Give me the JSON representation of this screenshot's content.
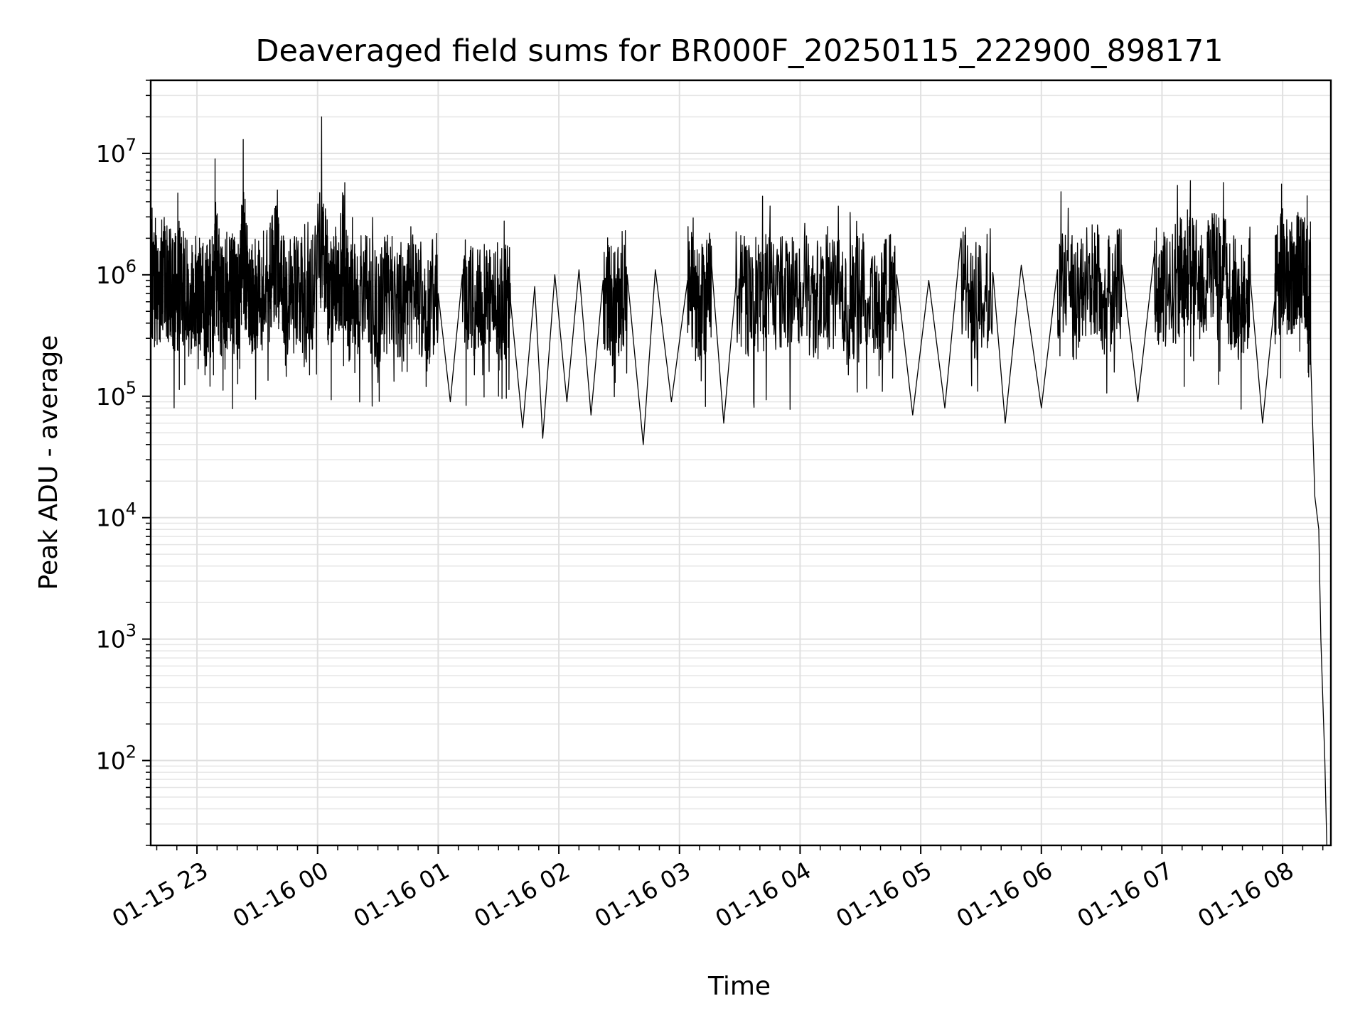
{
  "chart_data": {
    "type": "line",
    "title": "Deaveraged field sums for BR000F_20250115_222900_898171",
    "xlabel": "Time",
    "ylabel": "Peak ADU - average",
    "yscale": "log",
    "ylim": [
      20,
      40000000
    ],
    "xlim": [
      "2025-01-15 22:37",
      "2025-01-16 08:24"
    ],
    "grid": true,
    "line_color": "#000000",
    "x_ticks": [
      {
        "t": "2025-01-15 23:00",
        "label": "01-15 23"
      },
      {
        "t": "2025-01-16 00:00",
        "label": "01-16 00"
      },
      {
        "t": "2025-01-16 01:00",
        "label": "01-16 01"
      },
      {
        "t": "2025-01-16 02:00",
        "label": "01-16 02"
      },
      {
        "t": "2025-01-16 03:00",
        "label": "01-16 03"
      },
      {
        "t": "2025-01-16 04:00",
        "label": "01-16 04"
      },
      {
        "t": "2025-01-16 05:00",
        "label": "01-16 05"
      },
      {
        "t": "2025-01-16 06:00",
        "label": "01-16 06"
      },
      {
        "t": "2025-01-16 07:00",
        "label": "01-16 07"
      },
      {
        "t": "2025-01-16 08:00",
        "label": "01-16 08"
      }
    ],
    "y_ticks": [
      {
        "v": 100,
        "base": "10",
        "exp": "2"
      },
      {
        "v": 1000,
        "base": "10",
        "exp": "3"
      },
      {
        "v": 10000,
        "base": "10",
        "exp": "4"
      },
      {
        "v": 100000,
        "base": "10",
        "exp": "5"
      },
      {
        "v": 1000000,
        "base": "10",
        "exp": "6"
      },
      {
        "v": 10000000,
        "base": "10",
        "exp": "7"
      }
    ],
    "series": [
      {
        "points": [
          [
            "2025-01-15 22:37",
            1500000
          ],
          [
            "2025-01-15 22:40",
            600000
          ],
          [
            "2025-01-15 22:44",
            2500000
          ],
          [
            "2025-01-15 22:48",
            400000
          ],
          [
            "2025-01-15 22:52",
            1800000
          ],
          [
            "2025-01-15 22:56",
            250000
          ],
          [
            "2025-01-15 23:00",
            800000
          ],
          [
            "2025-01-15 23:04",
            150000
          ],
          [
            "2025-01-15 23:08",
            500000
          ],
          [
            "2025-01-15 23:09",
            9000000
          ],
          [
            "2025-01-15 23:12",
            300000
          ],
          [
            "2025-01-15 23:16",
            900000
          ],
          [
            "2025-01-15 23:20",
            200000
          ],
          [
            "2025-01-15 23:23",
            13000000
          ],
          [
            "2025-01-15 23:26",
            600000
          ],
          [
            "2025-01-15 23:30",
            250000
          ],
          [
            "2025-01-15 23:36",
            1200000
          ],
          [
            "2025-01-15 23:40",
            5000000
          ],
          [
            "2025-01-15 23:44",
            180000
          ],
          [
            "2025-01-15 23:50",
            700000
          ],
          [
            "2025-01-15 23:56",
            150000
          ],
          [
            "2025-01-16 00:02",
            20000000
          ],
          [
            "2025-01-16 00:06",
            400000
          ],
          [
            "2025-01-16 00:10",
            1400000
          ],
          [
            "2025-01-16 00:13",
            4500000
          ],
          [
            "2025-01-16 00:16",
            200000
          ],
          [
            "2025-01-16 00:22",
            800000
          ],
          [
            "2025-01-16 00:30",
            130000
          ],
          [
            "2025-01-16 00:36",
            1100000
          ],
          [
            "2025-01-16 00:42",
            160000
          ],
          [
            "2025-01-16 00:48",
            900000
          ],
          [
            "2025-01-16 00:54",
            120000
          ],
          [
            "2025-01-16 01:00",
            700000
          ],
          [
            "2025-01-16 01:06",
            90000
          ],
          [
            "2025-01-16 01:12",
            1000000
          ],
          [
            "2025-01-16 01:18",
            150000
          ],
          [
            "2025-01-16 01:24",
            900000
          ],
          [
            "2025-01-16 01:30",
            100000
          ],
          [
            "2025-01-16 01:36",
            600000
          ],
          [
            "2025-01-16 01:42",
            55000
          ],
          [
            "2025-01-16 01:48",
            800000
          ],
          [
            "2025-01-16 01:52",
            45000
          ],
          [
            "2025-01-16 01:58",
            1000000
          ],
          [
            "2025-01-16 02:04",
            90000
          ],
          [
            "2025-01-16 02:10",
            1100000
          ],
          [
            "2025-01-16 02:16",
            70000
          ],
          [
            "2025-01-16 02:22",
            900000
          ],
          [
            "2025-01-16 02:28",
            130000
          ],
          [
            "2025-01-16 02:34",
            1000000
          ],
          [
            "2025-01-16 02:42",
            40000
          ],
          [
            "2025-01-16 02:48",
            1100000
          ],
          [
            "2025-01-16 02:56",
            90000
          ],
          [
            "2025-01-16 03:04",
            900000
          ],
          [
            "2025-01-16 03:10",
            200000
          ],
          [
            "2025-01-16 03:16",
            1200000
          ],
          [
            "2025-01-16 03:22",
            60000
          ],
          [
            "2025-01-16 03:28",
            800000
          ],
          [
            "2025-01-16 03:36",
            300000
          ],
          [
            "2025-01-16 03:44",
            700000
          ],
          [
            "2025-01-16 03:52",
            400000
          ],
          [
            "2025-01-16 04:00",
            600000
          ],
          [
            "2025-01-16 04:08",
            250000
          ],
          [
            "2025-01-16 04:16",
            700000
          ],
          [
            "2025-01-16 04:24",
            150000
          ],
          [
            "2025-01-16 04:32",
            800000
          ],
          [
            "2025-01-16 04:40",
            200000
          ],
          [
            "2025-01-16 04:48",
            1000000
          ],
          [
            "2025-01-16 04:56",
            70000
          ],
          [
            "2025-01-16 05:04",
            900000
          ],
          [
            "2025-01-16 05:12",
            80000
          ],
          [
            "2025-01-16 05:20",
            2000000
          ],
          [
            "2025-01-16 05:28",
            200000
          ],
          [
            "2025-01-16 05:36",
            1000000
          ],
          [
            "2025-01-16 05:42",
            60000
          ],
          [
            "2025-01-16 05:50",
            1200000
          ],
          [
            "2025-01-16 06:00",
            80000
          ],
          [
            "2025-01-16 06:08",
            1100000
          ],
          [
            "2025-01-16 06:16",
            200000
          ],
          [
            "2025-01-16 06:24",
            1500000
          ],
          [
            "2025-01-16 06:32",
            300000
          ],
          [
            "2025-01-16 06:40",
            1200000
          ],
          [
            "2025-01-16 06:48",
            90000
          ],
          [
            "2025-01-16 06:56",
            1400000
          ],
          [
            "2025-01-16 07:02",
            400000
          ],
          [
            "2025-01-16 07:10",
            2000000
          ],
          [
            "2025-01-16 07:14",
            3500000
          ],
          [
            "2025-01-16 07:20",
            800000
          ],
          [
            "2025-01-16 07:26",
            3200000
          ],
          [
            "2025-01-16 07:32",
            1500000
          ],
          [
            "2025-01-16 07:38",
            200000
          ],
          [
            "2025-01-16 07:44",
            900000
          ],
          [
            "2025-01-16 07:50",
            60000
          ],
          [
            "2025-01-16 07:56",
            600000
          ],
          [
            "2025-01-16 08:00",
            3500000
          ],
          [
            "2025-01-16 08:04",
            1000000
          ],
          [
            "2025-01-16 08:08",
            3000000
          ],
          [
            "2025-01-16 08:12",
            1500000
          ],
          [
            "2025-01-16 08:14",
            200000
          ],
          [
            "2025-01-16 08:16",
            15000
          ],
          [
            "2025-01-16 08:18",
            8000
          ],
          [
            "2025-01-16 08:19",
            1000
          ],
          [
            "2025-01-16 08:21",
            100
          ],
          [
            "2025-01-16 08:22",
            20
          ]
        ]
      }
    ]
  }
}
